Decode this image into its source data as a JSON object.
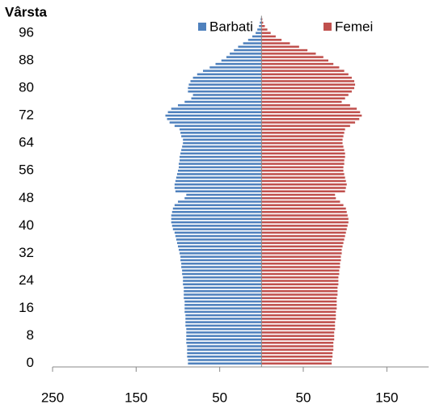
{
  "chart_data": {
    "type": "pyramid",
    "y_label": "Vârsta",
    "categories": [
      0,
      1,
      2,
      3,
      4,
      5,
      6,
      7,
      8,
      9,
      10,
      11,
      12,
      13,
      14,
      15,
      16,
      17,
      18,
      19,
      20,
      21,
      22,
      23,
      24,
      25,
      26,
      27,
      28,
      29,
      30,
      31,
      32,
      33,
      34,
      35,
      36,
      37,
      38,
      39,
      40,
      41,
      42,
      43,
      44,
      45,
      46,
      47,
      48,
      49,
      50,
      51,
      52,
      53,
      54,
      55,
      56,
      57,
      58,
      59,
      60,
      61,
      62,
      63,
      64,
      65,
      66,
      67,
      68,
      69,
      70,
      71,
      72,
      73,
      74,
      75,
      76,
      77,
      78,
      79,
      80,
      81,
      82,
      83,
      84,
      85,
      86,
      87,
      88,
      89,
      90,
      91,
      92,
      93,
      94,
      95,
      96,
      97,
      98,
      99,
      100
    ],
    "series": [
      {
        "name": "Barbati",
        "color": "#4f81bd",
        "values": [
          -88,
          -88,
          -89,
          -89,
          -89,
          -89,
          -90,
          -90,
          -90,
          -90,
          -90,
          -91,
          -91,
          -91,
          -91,
          -92,
          -92,
          -92,
          -92,
          -93,
          -93,
          -93,
          -93,
          -94,
          -94,
          -94,
          -95,
          -95,
          -96,
          -96,
          -97,
          -97,
          -98,
          -99,
          -100,
          -101,
          -102,
          -103,
          -104,
          -106,
          -107,
          -108,
          -108,
          -108,
          -107,
          -106,
          -104,
          -100,
          -92,
          -90,
          -103,
          -104,
          -104,
          -103,
          -102,
          -101,
          -100,
          -99,
          -99,
          -98,
          -98,
          -97,
          -96,
          -95,
          -94,
          -94,
          -96,
          -97,
          -98,
          -104,
          -110,
          -113,
          -115,
          -112,
          -108,
          -100,
          -92,
          -84,
          -82,
          -88,
          -88,
          -87,
          -85,
          -82,
          -77,
          -70,
          -62,
          -55,
          -48,
          -42,
          -38,
          -33,
          -28,
          -22,
          -16,
          -11,
          -7,
          -5,
          -3,
          -2,
          -1
        ]
      },
      {
        "name": "Femei",
        "color": "#c0504d",
        "values": [
          84,
          84,
          85,
          85,
          86,
          86,
          86,
          87,
          87,
          87,
          88,
          88,
          88,
          89,
          89,
          89,
          90,
          90,
          90,
          90,
          91,
          91,
          91,
          92,
          92,
          92,
          93,
          93,
          94,
          94,
          95,
          95,
          96,
          96,
          97,
          98,
          99,
          100,
          101,
          102,
          103,
          104,
          104,
          103,
          102,
          101,
          98,
          94,
          89,
          88,
          100,
          101,
          102,
          101,
          100,
          99,
          98,
          98,
          99,
          99,
          100,
          100,
          99,
          98,
          97,
          97,
          98,
          99,
          100,
          106,
          112,
          117,
          120,
          118,
          114,
          106,
          96,
          100,
          104,
          108,
          111,
          112,
          111,
          108,
          104,
          99,
          93,
          86,
          80,
          74,
          65,
          55,
          45,
          34,
          24,
          17,
          11,
          7,
          4,
          2,
          1
        ]
      }
    ],
    "xlim": [
      -250,
      200
    ],
    "xticks": [
      {
        "value": -250,
        "label": "250"
      },
      {
        "value": -150,
        "label": "150"
      },
      {
        "value": -50,
        "label": "50"
      },
      50,
      150
    ],
    "ylim": [
      -1,
      101
    ],
    "yticks": [
      0,
      8,
      16,
      24,
      32,
      40,
      48,
      56,
      64,
      72,
      80,
      88,
      96
    ],
    "legend": "top"
  }
}
